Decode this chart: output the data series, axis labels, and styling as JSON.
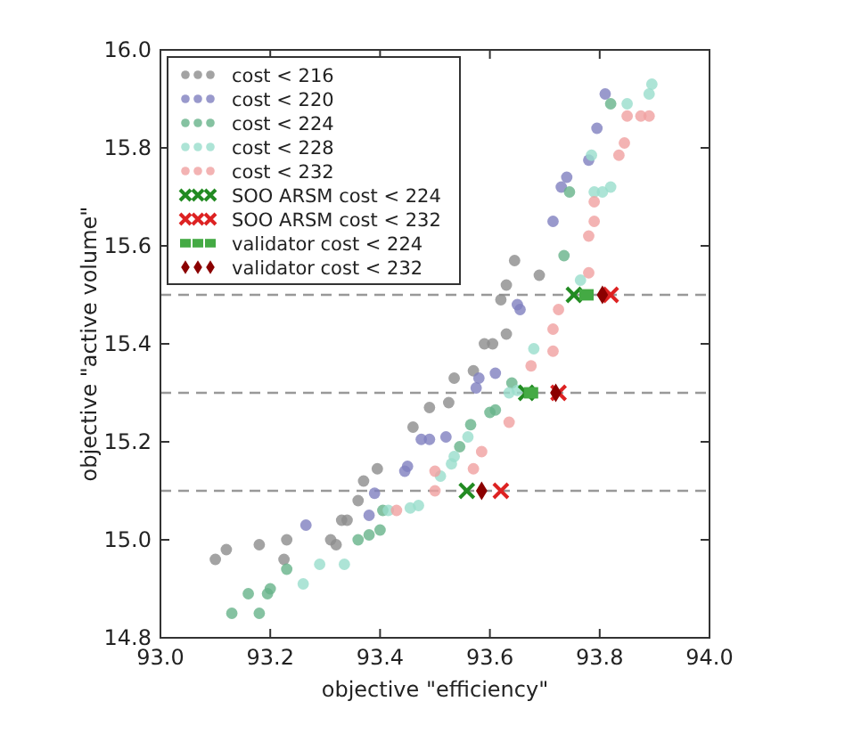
{
  "chart_data": {
    "type": "scatter",
    "xlabel": "objective \"efficiency\"",
    "ylabel": "objective \"active volume\"",
    "xlim": [
      93.0,
      94.0
    ],
    "xticks": [
      {
        "value": 93.0,
        "label": "93.0"
      },
      {
        "value": 93.2,
        "label": "93.2"
      },
      {
        "value": 93.4,
        "label": "93.4"
      },
      {
        "value": 93.6,
        "label": "93.6"
      },
      {
        "value": 93.8,
        "label": "93.8"
      },
      {
        "value": 94.0,
        "label": "94.0"
      }
    ],
    "ylim": [
      14.8,
      16.0
    ],
    "yticks": [
      {
        "value": 14.8,
        "label": "14.8"
      },
      {
        "value": 15.0,
        "label": "15.0"
      },
      {
        "value": 15.2,
        "label": "15.2"
      },
      {
        "value": 15.4,
        "label": "15.4"
      },
      {
        "value": 15.6,
        "label": "15.6"
      },
      {
        "value": 15.8,
        "label": "15.8"
      },
      {
        "value": 16.0,
        "label": "16.0"
      }
    ],
    "grid": false,
    "legend": "top left",
    "ref_lines": [
      {
        "axis": "y",
        "value": 15.1,
        "color": "#999999",
        "line_style": "dashed"
      },
      {
        "axis": "y",
        "value": 15.3,
        "color": "#999999",
        "line_style": "dashed"
      },
      {
        "axis": "y",
        "value": 15.5,
        "color": "#999999",
        "line_style": "dashed"
      }
    ],
    "series": [
      {
        "name": "cost < 216",
        "color": "#8c8c8c",
        "marker": "circle",
        "x": [
          93.1,
          93.12,
          93.18,
          93.23,
          93.225,
          93.31,
          93.32,
          93.33,
          93.34,
          93.36,
          93.37,
          93.395,
          93.645,
          93.69,
          93.63,
          93.62,
          93.59,
          93.605,
          93.535,
          93.49,
          93.46,
          93.57,
          93.525,
          93.63
        ],
        "values": [
          14.96,
          14.98,
          14.99,
          15.0,
          14.96,
          15.0,
          14.99,
          15.04,
          15.04,
          15.08,
          15.12,
          15.145,
          15.57,
          15.54,
          15.52,
          15.49,
          15.4,
          15.4,
          15.33,
          15.27,
          15.23,
          15.345,
          15.28,
          15.42
        ]
      },
      {
        "name": "cost < 220",
        "color": "#7f7fbf",
        "marker": "circle",
        "x": [
          93.265,
          93.38,
          93.39,
          93.65,
          93.655,
          93.61,
          93.58,
          93.575,
          93.475,
          93.49,
          93.52,
          93.45,
          93.445,
          93.81,
          93.795,
          93.78,
          93.715,
          93.74,
          93.73
        ],
        "values": [
          15.03,
          15.05,
          15.095,
          15.48,
          15.47,
          15.34,
          15.33,
          15.31,
          15.205,
          15.205,
          15.21,
          15.15,
          15.14,
          15.91,
          15.84,
          15.775,
          15.65,
          15.74,
          15.72
        ]
      },
      {
        "name": "cost < 224",
        "color": "#66b38a",
        "marker": "circle",
        "x": [
          93.195,
          93.2,
          93.23,
          93.16,
          93.13,
          93.18,
          93.36,
          93.38,
          93.4,
          93.405,
          93.735,
          93.64,
          93.61,
          93.6,
          93.565,
          93.545,
          93.82,
          93.745
        ],
        "values": [
          14.89,
          14.9,
          14.94,
          14.89,
          14.85,
          14.85,
          15.0,
          15.01,
          15.02,
          15.06,
          15.58,
          15.32,
          15.265,
          15.26,
          15.235,
          15.19,
          15.89,
          15.71
        ]
      },
      {
        "name": "cost < 228",
        "color": "#99ddcc",
        "marker": "circle",
        "x": [
          93.335,
          93.26,
          93.29,
          93.415,
          93.455,
          93.47,
          93.765,
          93.68,
          93.635,
          93.65,
          93.56,
          93.535,
          93.53,
          93.51,
          93.895,
          93.89,
          93.85,
          93.785,
          93.79,
          93.82,
          93.805
        ],
        "values": [
          14.95,
          14.91,
          14.95,
          15.06,
          15.065,
          15.07,
          15.53,
          15.39,
          15.3,
          15.305,
          15.21,
          15.17,
          15.155,
          15.13,
          15.93,
          15.91,
          15.89,
          15.785,
          15.71,
          15.72,
          15.71
        ]
      },
      {
        "name": "cost < 232",
        "color": "#f0a0a0",
        "marker": "circle",
        "x": [
          93.43,
          93.5,
          93.78,
          93.725,
          93.715,
          93.715,
          93.675,
          93.635,
          93.585,
          93.57,
          93.5,
          93.85,
          93.875,
          93.89,
          93.835,
          93.845,
          93.79,
          93.79,
          93.78
        ],
        "values": [
          15.06,
          15.1,
          15.545,
          15.47,
          15.43,
          15.385,
          15.355,
          15.24,
          15.18,
          15.145,
          15.14,
          15.865,
          15.865,
          15.865,
          15.785,
          15.81,
          15.69,
          15.65,
          15.62
        ]
      },
      {
        "name": "SOO ARSM cost < 224",
        "color": "#228b22",
        "marker": "cross",
        "x": [
          93.558,
          93.666,
          93.753
        ],
        "values": [
          15.1,
          15.3,
          15.5
        ]
      },
      {
        "name": "SOO ARSM cost < 232",
        "color": "#dd2222",
        "marker": "cross",
        "x": [
          93.62,
          93.725,
          93.82
        ],
        "values": [
          15.1,
          15.3,
          15.5
        ]
      },
      {
        "name": "validator cost < 224",
        "color": "#44aa44",
        "marker": "square",
        "x": [
          93.675,
          93.776
        ],
        "values": [
          15.3,
          15.5
        ]
      },
      {
        "name": "validator cost < 232",
        "color": "#8b0000",
        "marker": "diamond",
        "x": [
          93.585,
          93.72,
          93.805
        ],
        "values": [
          15.1,
          15.3,
          15.5
        ]
      }
    ]
  }
}
